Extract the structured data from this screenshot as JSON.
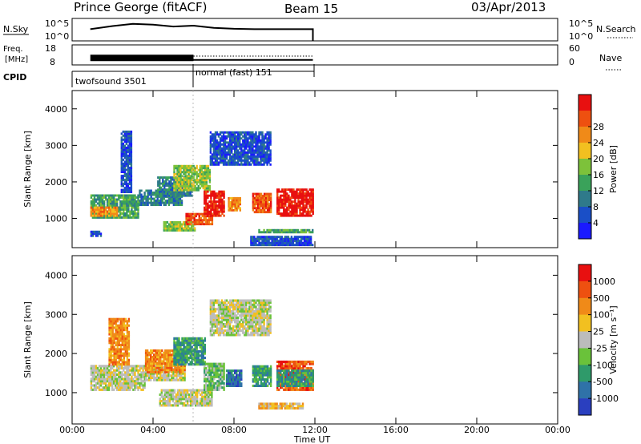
{
  "header": {
    "station": "Prince George (fitACF)",
    "beam": "Beam 15",
    "date": "03/Apr/2013"
  },
  "labels": {
    "nsky": "N.Sky",
    "nsearch": "N.Search",
    "freq_line1": "Freq.",
    "freq_line2": "[MHz]",
    "nave": "Nave",
    "cpid": "CPID",
    "nsky_tick_top": "10^5",
    "nsky_tick_bot": "10^0",
    "nsearch_tick_top": "10^5",
    "nsearch_tick_bot": "10^0",
    "freq_tick_top": "18",
    "freq_tick_bot": "8",
    "nave_tick_top": "60",
    "nave_tick_bot": "0",
    "cpid_1": "twofsound 3501",
    "cpid_2": "normal (fast) 151",
    "power_label": "Power [dB]",
    "velocity_label": "Velocity [m s⁻¹]"
  },
  "chart_data": [
    {
      "type": "heatmap",
      "panel": "power",
      "ylabel": "Slant Range [km]",
      "ylim": [
        200,
        4500
      ],
      "yticks": [
        "1000",
        "2000",
        "3000",
        "4000"
      ],
      "xlim": [
        0,
        24
      ],
      "colorbar": {
        "label": "Power [dB]",
        "ticks": [
          "4",
          "8",
          "12",
          "16",
          "20",
          "24",
          "28"
        ],
        "colors": [
          "#1a1aff",
          "#1a4fc7",
          "#2f7a8a",
          "#3aa25a",
          "#7dc23a",
          "#f2c020",
          "#f08a18",
          "#ee5010",
          "#e81010"
        ]
      },
      "regions": [
        {
          "t0": 0.9,
          "t1": 3.3,
          "r0": 1000,
          "r1": 1650,
          "level": 3
        },
        {
          "t0": 0.9,
          "t1": 2.2,
          "r0": 1050,
          "r1": 1300,
          "level": 6
        },
        {
          "t0": 3.3,
          "t1": 5.4,
          "r0": 1350,
          "r1": 1750,
          "level": 2
        },
        {
          "t0": 4.2,
          "t1": 5.9,
          "r0": 1600,
          "r1": 2100,
          "level": 2
        },
        {
          "t0": 5.0,
          "t1": 6.8,
          "r0": 1750,
          "r1": 2450,
          "level": 4
        },
        {
          "t0": 4.5,
          "t1": 6.1,
          "r0": 650,
          "r1": 900,
          "level": 4
        },
        {
          "t0": 5.6,
          "t1": 6.9,
          "r0": 820,
          "r1": 1100,
          "level": 7
        },
        {
          "t0": 6.5,
          "t1": 7.5,
          "r0": 1050,
          "r1": 1750,
          "level": 8
        },
        {
          "t0": 6.8,
          "t1": 9.8,
          "r0": 2450,
          "r1": 3350,
          "level": 1
        },
        {
          "t0": 7.7,
          "t1": 8.3,
          "r0": 1200,
          "r1": 1550,
          "level": 6
        },
        {
          "t0": 8.9,
          "t1": 9.8,
          "r0": 1150,
          "r1": 1700,
          "level": 7
        },
        {
          "t0": 10.1,
          "t1": 11.9,
          "r0": 1050,
          "r1": 1800,
          "level": 8
        },
        {
          "t0": 9.2,
          "t1": 11.9,
          "r0": 600,
          "r1": 700,
          "level": 3
        },
        {
          "t0": 8.8,
          "t1": 11.9,
          "r0": 250,
          "r1": 500,
          "level": 1
        },
        {
          "t0": 0.9,
          "t1": 1.4,
          "r0": 500,
          "r1": 650,
          "level": 1
        },
        {
          "t0": 2.4,
          "t1": 2.9,
          "r0": 1700,
          "r1": 3400,
          "level": 1
        }
      ]
    },
    {
      "type": "heatmap",
      "panel": "velocity",
      "ylabel": "Slant Range [km]",
      "ylim": [
        200,
        4500
      ],
      "yticks": [
        "1000",
        "2000",
        "3000",
        "4000"
      ],
      "xlim": [
        0,
        24
      ],
      "xticks": [
        "00:00",
        "04:00",
        "08:00",
        "12:00",
        "16:00",
        "20:00",
        "00:00"
      ],
      "xlabel": "Time UT",
      "colorbar": {
        "label": "Velocity [m s⁻¹]",
        "ticks": [
          "1000",
          "500",
          "100",
          "25",
          "-25",
          "-100",
          "-500",
          "-1000"
        ],
        "colors": [
          "#2a3fbf",
          "#2f72a8",
          "#2f9a6a",
          "#6ac23a",
          "#bcbcbc",
          "#f2c020",
          "#f08a18",
          "#ee5010",
          "#e81010"
        ]
      },
      "regions": [
        {
          "t0": 0.9,
          "t1": 3.6,
          "r0": 1050,
          "r1": 1700,
          "level": 4
        },
        {
          "t0": 3.6,
          "t1": 5.6,
          "r0": 1300,
          "r1": 1750,
          "level": 4
        },
        {
          "t0": 4.3,
          "t1": 6.9,
          "r0": 650,
          "r1": 1050,
          "level": 4
        },
        {
          "t0": 6.8,
          "t1": 9.8,
          "r0": 2450,
          "r1": 3350,
          "level": 4
        },
        {
          "t0": 3.6,
          "t1": 5.6,
          "r0": 1500,
          "r1": 2100,
          "level": 6
        },
        {
          "t0": 5.0,
          "t1": 6.6,
          "r0": 1700,
          "r1": 2400,
          "level": 2
        },
        {
          "t0": 6.5,
          "t1": 7.5,
          "r0": 1050,
          "r1": 1750,
          "level": 3
        },
        {
          "t0": 7.6,
          "t1": 8.4,
          "r0": 1150,
          "r1": 1550,
          "level": 1
        },
        {
          "t0": 8.9,
          "t1": 9.8,
          "r0": 1150,
          "r1": 1700,
          "level": 2
        },
        {
          "t0": 10.1,
          "t1": 11.9,
          "r0": 1050,
          "r1": 1800,
          "level": 7
        },
        {
          "t0": 10.1,
          "t1": 11.9,
          "r0": 1150,
          "r1": 1550,
          "level": 2
        },
        {
          "t0": 9.2,
          "t1": 11.4,
          "r0": 580,
          "r1": 720,
          "level": 5
        },
        {
          "t0": 1.8,
          "t1": 2.8,
          "r0": 1700,
          "r1": 2900,
          "level": 6
        }
      ]
    },
    {
      "type": "line",
      "panel": "nsky",
      "series": [
        {
          "x": [
            0.9,
            2,
            3,
            4,
            5,
            6,
            7,
            8,
            9,
            10,
            11,
            11.9
          ],
          "values": [
            2.6,
            3.3,
            3.8,
            3.6,
            3.2,
            3.4,
            2.9,
            2.7,
            2.6,
            2.6,
            2.6,
            2.6
          ]
        }
      ],
      "xlim": [
        0,
        24
      ],
      "ylim": [
        0,
        5
      ]
    },
    {
      "type": "area",
      "panel": "freq",
      "series": [
        {
          "x": [
            0.9,
            6.0
          ],
          "values": [
            11.5,
            11.5
          ]
        },
        {
          "x": [
            6.0,
            11.9
          ],
          "values": [
            10.5,
            10.5
          ]
        }
      ],
      "xlim": [
        0,
        24
      ],
      "ylim": [
        8,
        18
      ]
    }
  ]
}
